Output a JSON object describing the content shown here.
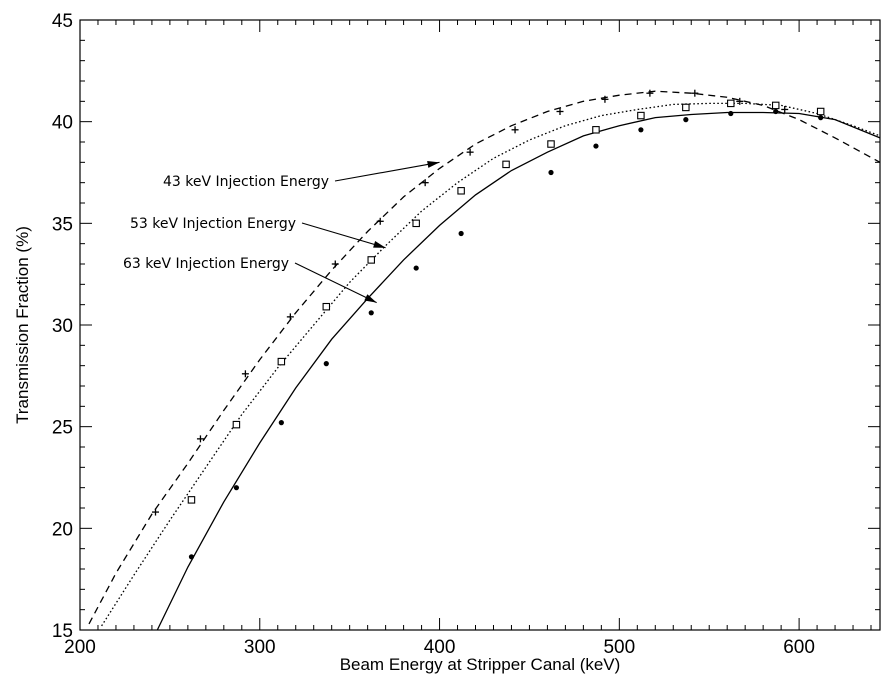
{
  "chart_data": {
    "type": "line",
    "title": "",
    "xlabel": "Beam Energy at Stripper Canal (keV)",
    "ylabel": "Transmission Fraction (%)",
    "xlim": [
      200,
      645
    ],
    "ylim": [
      15,
      45
    ],
    "xticks": [
      200,
      300,
      400,
      500,
      600
    ],
    "yticks": [
      15,
      20,
      25,
      30,
      35,
      40,
      45
    ],
    "grid": false,
    "legend": "none",
    "annotations": [
      {
        "text": "43 keV Injection Energy",
        "series": "43",
        "point": [
          400,
          38.0
        ]
      },
      {
        "text": "53 keV Injection Energy",
        "series": "53",
        "point": [
          370,
          33.8
        ]
      },
      {
        "text": "63 keV Injection Energy",
        "series": "63",
        "point": [
          365,
          31.1
        ]
      }
    ],
    "series": [
      {
        "key": "43",
        "line_style": "dashed",
        "marker": "plus",
        "fit": [
          [
            205,
            15.3
          ],
          [
            220,
            17.8
          ],
          [
            240,
            20.7
          ],
          [
            260,
            23.2
          ],
          [
            280,
            25.8
          ],
          [
            300,
            28.3
          ],
          [
            320,
            30.6
          ],
          [
            340,
            32.7
          ],
          [
            360,
            34.6
          ],
          [
            380,
            36.3
          ],
          [
            400,
            37.7
          ],
          [
            420,
            38.9
          ],
          [
            440,
            39.8
          ],
          [
            460,
            40.5
          ],
          [
            480,
            41.0
          ],
          [
            500,
            41.3
          ],
          [
            520,
            41.5
          ],
          [
            540,
            41.4
          ],
          [
            560,
            41.2
          ],
          [
            580,
            40.8
          ],
          [
            600,
            40.1
          ],
          [
            620,
            39.2
          ],
          [
            645,
            38.0
          ]
        ],
        "points": [
          [
            242,
            20.8
          ],
          [
            267,
            24.4
          ],
          [
            292,
            27.6
          ],
          [
            317,
            30.4
          ],
          [
            342,
            33.0
          ],
          [
            367,
            35.1
          ],
          [
            392,
            37.0
          ],
          [
            417,
            38.5
          ],
          [
            442,
            39.6
          ],
          [
            467,
            40.5
          ],
          [
            492,
            41.1
          ],
          [
            517,
            41.4
          ],
          [
            542,
            41.4
          ],
          [
            567,
            41.0
          ],
          [
            592,
            40.6
          ]
        ]
      },
      {
        "key": "53",
        "line_style": "dotted",
        "marker": "square",
        "fit": [
          [
            212,
            15.2
          ],
          [
            230,
            17.7
          ],
          [
            250,
            20.4
          ],
          [
            270,
            23.0
          ],
          [
            290,
            25.6
          ],
          [
            310,
            27.9
          ],
          [
            330,
            30.0
          ],
          [
            350,
            32.1
          ],
          [
            370,
            33.9
          ],
          [
            390,
            35.6
          ],
          [
            410,
            37.0
          ],
          [
            430,
            38.2
          ],
          [
            450,
            39.1
          ],
          [
            470,
            39.8
          ],
          [
            490,
            40.3
          ],
          [
            510,
            40.6
          ],
          [
            530,
            40.85
          ],
          [
            550,
            40.9
          ],
          [
            570,
            40.9
          ],
          [
            590,
            40.8
          ],
          [
            610,
            40.4
          ],
          [
            630,
            39.8
          ],
          [
            645,
            39.3
          ]
        ],
        "points": [
          [
            262,
            21.4
          ],
          [
            287,
            25.1
          ],
          [
            312,
            28.2
          ],
          [
            337,
            30.9
          ],
          [
            362,
            33.2
          ],
          [
            387,
            35.0
          ],
          [
            412,
            36.6
          ],
          [
            437,
            37.9
          ],
          [
            462,
            38.9
          ],
          [
            487,
            39.6
          ],
          [
            512,
            40.3
          ],
          [
            537,
            40.7
          ],
          [
            562,
            40.9
          ],
          [
            587,
            40.8
          ],
          [
            612,
            40.5
          ]
        ]
      },
      {
        "key": "63",
        "line_style": "solid",
        "marker": "dot",
        "fit": [
          [
            243,
            15.0
          ],
          [
            260,
            18.1
          ],
          [
            280,
            21.3
          ],
          [
            300,
            24.2
          ],
          [
            320,
            26.9
          ],
          [
            340,
            29.3
          ],
          [
            360,
            31.3
          ],
          [
            380,
            33.2
          ],
          [
            400,
            34.9
          ],
          [
            420,
            36.4
          ],
          [
            440,
            37.6
          ],
          [
            460,
            38.5
          ],
          [
            480,
            39.3
          ],
          [
            500,
            39.8
          ],
          [
            520,
            40.2
          ],
          [
            540,
            40.35
          ],
          [
            560,
            40.45
          ],
          [
            580,
            40.45
          ],
          [
            600,
            40.4
          ],
          [
            620,
            40.1
          ],
          [
            645,
            39.2
          ]
        ],
        "points": [
          [
            262,
            18.6
          ],
          [
            287,
            22.0
          ],
          [
            312,
            25.2
          ],
          [
            337,
            28.1
          ],
          [
            362,
            30.6
          ],
          [
            387,
            32.8
          ],
          [
            412,
            34.5
          ],
          [
            462,
            37.5
          ],
          [
            487,
            38.8
          ],
          [
            512,
            39.6
          ],
          [
            537,
            40.1
          ],
          [
            562,
            40.4
          ],
          [
            587,
            40.5
          ],
          [
            612,
            40.2
          ]
        ]
      }
    ]
  }
}
